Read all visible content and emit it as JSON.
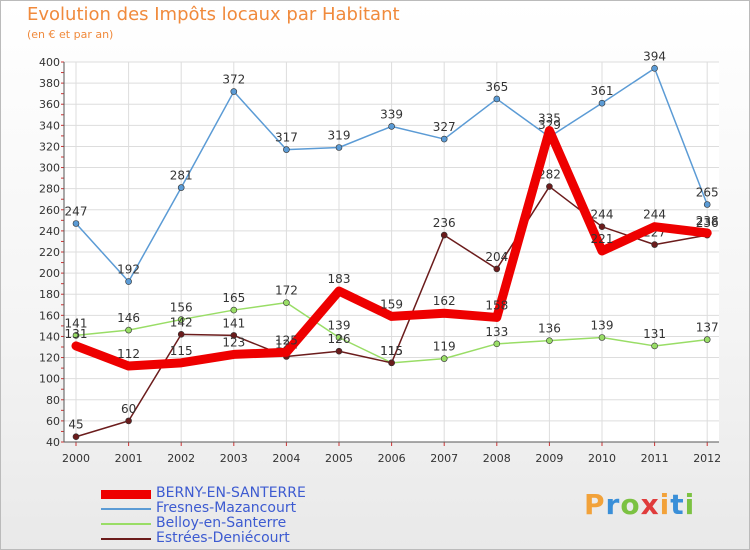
{
  "title": "Evolution des Impôts locaux par Habitant",
  "subtitle": "(en € et par an)",
  "logo_text": "Proxiti",
  "chart_data": {
    "type": "line",
    "title": "Evolution des Impôts locaux par Habitant",
    "subtitle": "(en € et par an)",
    "xlabel": "",
    "ylabel": "",
    "x": [
      "2000",
      "2001",
      "2002",
      "2003",
      "2004",
      "2005",
      "2006",
      "2007",
      "2008",
      "2009",
      "2010",
      "2011",
      "2012"
    ],
    "ylim": [
      40,
      400
    ],
    "yticks": [
      40,
      60,
      80,
      100,
      120,
      140,
      160,
      180,
      200,
      220,
      240,
      260,
      280,
      300,
      320,
      340,
      360,
      380,
      400
    ],
    "grid": true,
    "legend_position": "bottom-left",
    "series": [
      {
        "name": "BERNY-EN-SANTERRE",
        "color": "#ee0000",
        "values": [
          131,
          112,
          115,
          123,
          125,
          183,
          159,
          162,
          158,
          335,
          221,
          244,
          238
        ]
      },
      {
        "name": "Fresnes-Mazancourt",
        "color": "#5b9bd5",
        "values": [
          247,
          192,
          281,
          372,
          317,
          319,
          339,
          327,
          365,
          329,
          361,
          394,
          265
        ]
      },
      {
        "name": "Belloy-en-Santerre",
        "color": "#99dd66",
        "values": [
          141,
          146,
          156,
          165,
          172,
          139,
          115,
          119,
          133,
          136,
          139,
          131,
          137
        ]
      },
      {
        "name": "Estrées-Deniécourt",
        "color": "#6b1c1c",
        "values": [
          45,
          60,
          142,
          141,
          121,
          126,
          115,
          236,
          204,
          282,
          244,
          227,
          236
        ]
      }
    ]
  }
}
